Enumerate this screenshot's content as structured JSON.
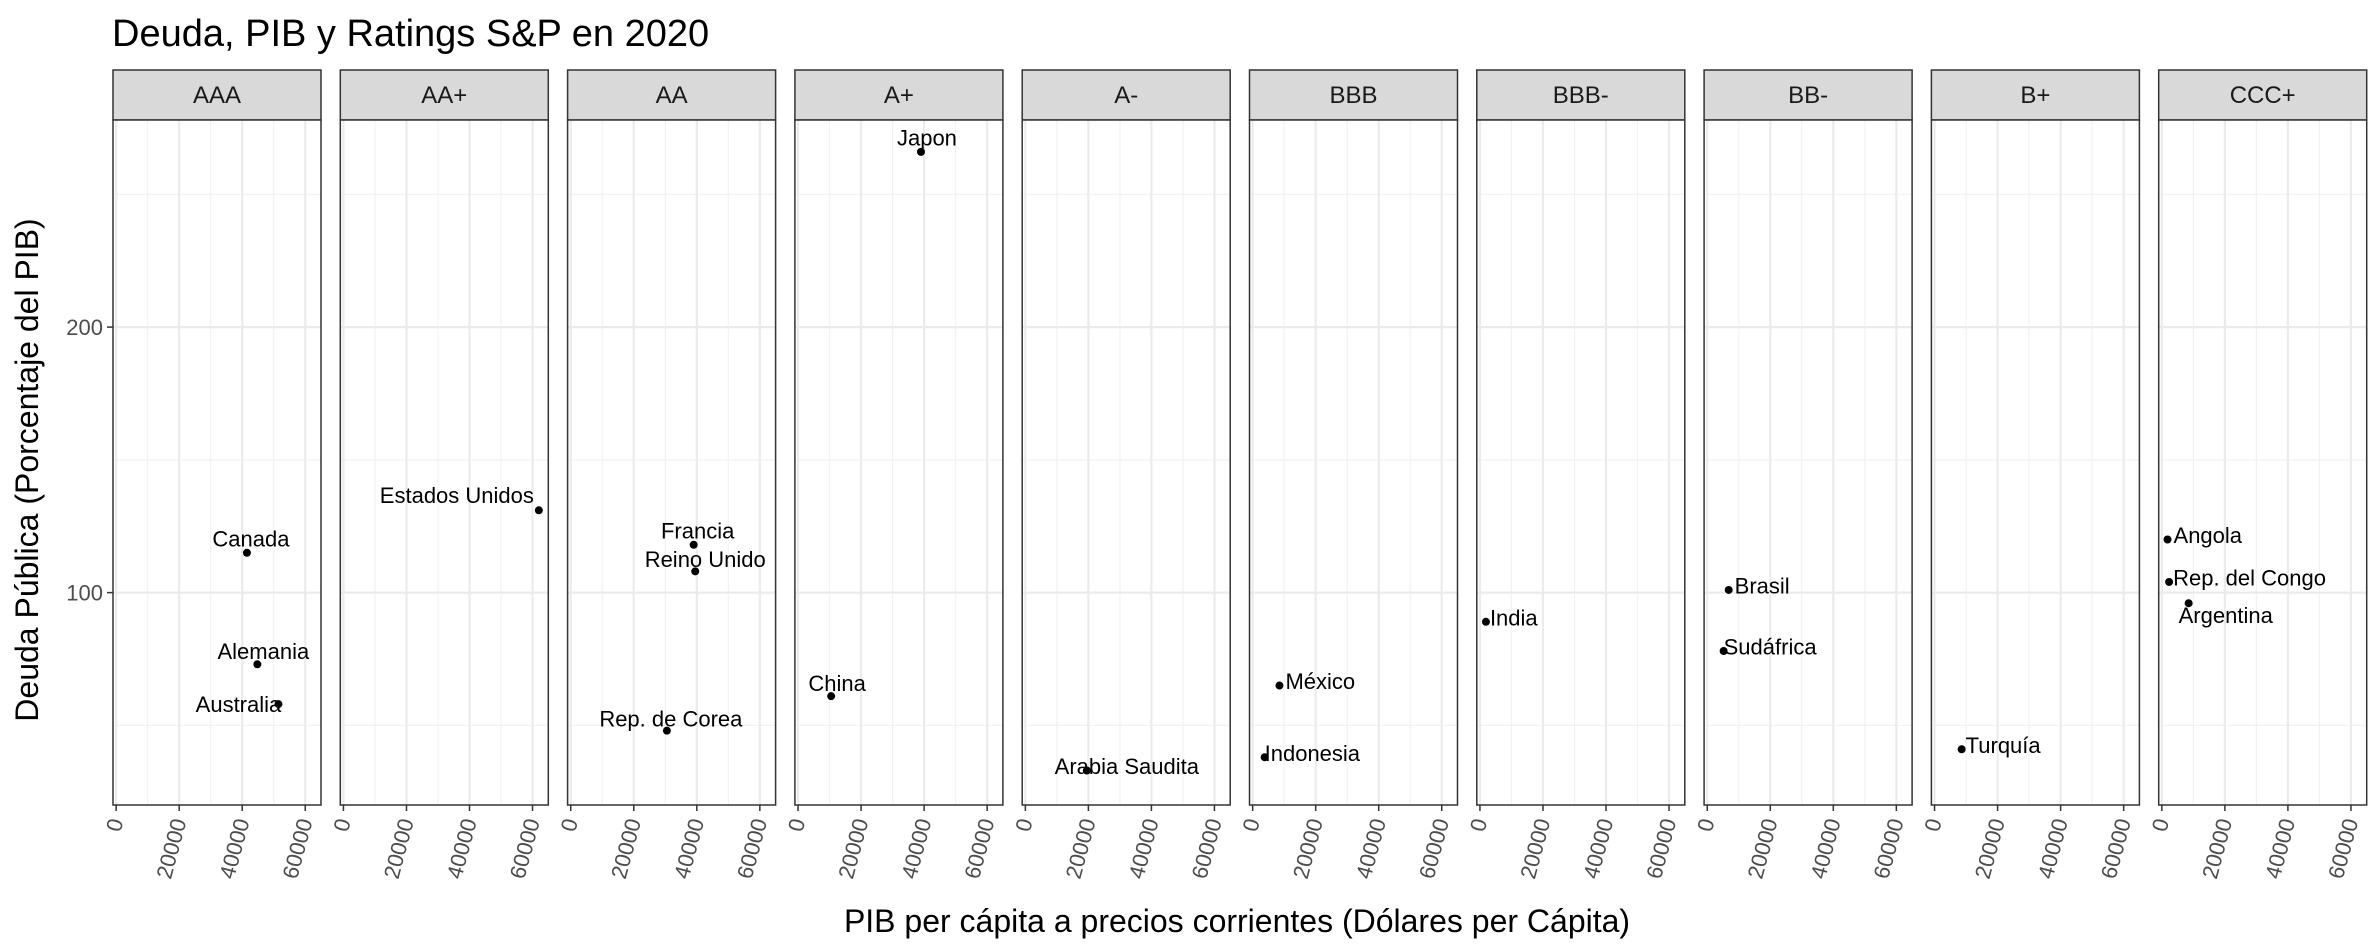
{
  "chart_data": {
    "type": "scatter",
    "title": "Deuda, PIB y Ratings S&P en 2020",
    "xlabel": "PIB per cápita a precios corrientes (Dólares per Cápita)",
    "ylabel": "Deuda Pública (Porcentaje del PIB)",
    "xlim": [
      -1000,
      65000
    ],
    "ylim": [
      20,
      278
    ],
    "x_ticks": [
      "0",
      "20000",
      "40000",
      "60000"
    ],
    "y_ticks": [
      "100",
      "200"
    ],
    "grid": true,
    "facets": [
      {
        "label": "AAA",
        "points": [
          {
            "name": "Canada",
            "x": 41500,
            "y": 115
          },
          {
            "name": "Alemania",
            "x": 44800,
            "y": 73
          },
          {
            "name": "Australia",
            "x": 51500,
            "y": 58
          }
        ]
      },
      {
        "label": "AA+",
        "points": [
          {
            "name": "Estados Unidos",
            "x": 62000,
            "y": 131
          }
        ]
      },
      {
        "label": "AA",
        "points": [
          {
            "name": "Francia",
            "x": 39000,
            "y": 118
          },
          {
            "name": "Reino Unido",
            "x": 39500,
            "y": 108
          },
          {
            "name": "Rep. de Corea",
            "x": 30500,
            "y": 48
          }
        ]
      },
      {
        "label": "A+",
        "points": [
          {
            "name": "Japon",
            "x": 39000,
            "y": 266
          },
          {
            "name": "China",
            "x": 10500,
            "y": 61
          }
        ]
      },
      {
        "label": "A-",
        "points": [
          {
            "name": "Arabia Saudita",
            "x": 19500,
            "y": 33
          }
        ]
      },
      {
        "label": "BBB",
        "points": [
          {
            "name": "México",
            "x": 8500,
            "y": 65
          },
          {
            "name": "Indonesia",
            "x": 3800,
            "y": 38
          }
        ]
      },
      {
        "label": "BBB-",
        "points": [
          {
            "name": "India",
            "x": 1900,
            "y": 89
          }
        ]
      },
      {
        "label": "BB-",
        "points": [
          {
            "name": "Brasil",
            "x": 6800,
            "y": 101
          },
          {
            "name": "Sudáfrica",
            "x": 5200,
            "y": 78
          }
        ]
      },
      {
        "label": "B+",
        "points": [
          {
            "name": "Turquía",
            "x": 8600,
            "y": 41
          }
        ]
      },
      {
        "label": "CCC+",
        "points": [
          {
            "name": "Angola",
            "x": 1800,
            "y": 120
          },
          {
            "name": "Rep. del Congo",
            "x": 2300,
            "y": 104
          },
          {
            "name": "Argentina",
            "x": 8500,
            "y": 96
          }
        ]
      }
    ]
  }
}
